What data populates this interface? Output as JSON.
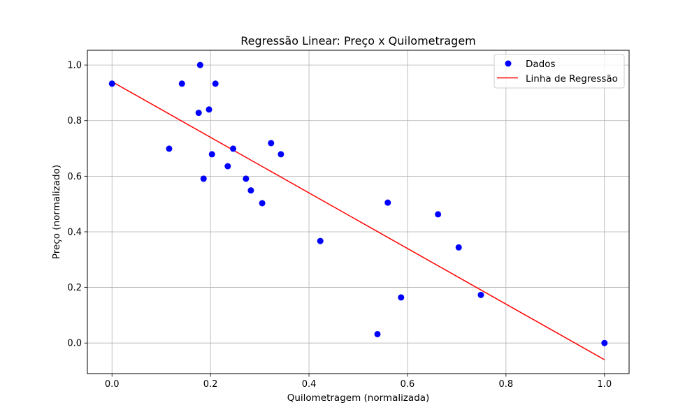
{
  "chart_data": {
    "type": "scatter",
    "title": "Regressão Linear: Preço x Quilometragem",
    "xlabel": "Quilometragem (normalizada)",
    "ylabel": "Preço (normalizado)",
    "xlim": [
      -0.05,
      1.05
    ],
    "ylim": [
      -0.11,
      1.053
    ],
    "x_ticks": [
      0.0,
      0.2,
      0.4,
      0.6,
      0.8,
      1.0
    ],
    "y_ticks": [
      0.0,
      0.2,
      0.4,
      0.6,
      0.8,
      1.0
    ],
    "x_tick_labels": [
      "0.0",
      "0.2",
      "0.4",
      "0.6",
      "0.8",
      "1.0"
    ],
    "y_tick_labels": [
      "0.0",
      "0.2",
      "0.4",
      "0.6",
      "0.8",
      "1.0"
    ],
    "grid": true,
    "legend_position": "top-right",
    "series": [
      {
        "name": "Dados",
        "kind": "scatter",
        "color": "#0000ff",
        "x": [
          0.0,
          0.116,
          0.142,
          0.176,
          0.179,
          0.186,
          0.197,
          0.203,
          0.21,
          0.235,
          0.246,
          0.272,
          0.282,
          0.305,
          0.323,
          0.343,
          0.423,
          0.539,
          0.56,
          0.587,
          0.662,
          0.704,
          0.749,
          1.0
        ],
        "y": [
          0.933,
          0.699,
          0.933,
          0.828,
          1.0,
          0.591,
          0.84,
          0.679,
          0.933,
          0.636,
          0.699,
          0.591,
          0.549,
          0.503,
          0.719,
          0.679,
          0.367,
          0.032,
          0.505,
          0.164,
          0.463,
          0.344,
          0.173,
          0.0
        ]
      },
      {
        "name": "Linha de Regressão",
        "kind": "line",
        "color": "#ff0000",
        "x": [
          0.0,
          1.0
        ],
        "y": [
          0.94,
          -0.06
        ]
      }
    ]
  }
}
